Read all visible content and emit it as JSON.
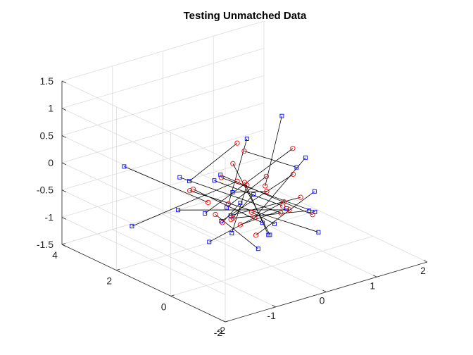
{
  "chart_data": {
    "type": "scatter",
    "title": "Testing Unmatched Data",
    "xlabel": "",
    "ylabel": "",
    "zlabel": "",
    "xlim": [
      -2,
      2
    ],
    "ylim": [
      -2,
      4
    ],
    "zlim": [
      -1.5,
      1.5
    ],
    "x_ticks": [
      "-2",
      "-1",
      "0",
      "1",
      "2"
    ],
    "y_ticks": [
      "-2",
      "0",
      "2",
      "4"
    ],
    "z_ticks": [
      "-1.5",
      "-1",
      "-0.5",
      "0",
      "0.5",
      "1",
      "1.5"
    ],
    "grid": true,
    "colors": {
      "squares": "#0000ff",
      "circles": "#ff0000",
      "links": "#000000"
    },
    "series": [
      {
        "marker": "square",
        "color": "#0000ff",
        "values": []
      },
      {
        "marker": "circle",
        "color": "#ff0000",
        "values": []
      }
    ],
    "points": [
      {
        "id": 1,
        "sx": 0.8,
        "sy": 2.4,
        "sz": 0.05,
        "cx": -0.05,
        "cy": 1.5,
        "cz": -0.7
      },
      {
        "id": 2,
        "sx": -1.2,
        "sy": 3.2,
        "sz": -0.1,
        "cx": -0.4,
        "cy": 1.6,
        "cz": -0.6
      },
      {
        "id": 3,
        "sx": -0.5,
        "sy": 2.1,
        "sz": -0.3,
        "cx": 0.5,
        "cy": 2.2,
        "cz": 0.1
      },
      {
        "id": 4,
        "sx": -1.8,
        "sy": 1.8,
        "sz": -0.7,
        "cx": -0.2,
        "cy": 0.9,
        "cz": -0.1
      },
      {
        "id": 5,
        "sx": 0.4,
        "sy": 0.2,
        "sz": -0.6,
        "cx": -0.3,
        "cy": 0.6,
        "cz": -0.8
      },
      {
        "id": 6,
        "sx": -0.6,
        "sy": 0.4,
        "sz": -0.5,
        "cx": 0.3,
        "cy": -0.5,
        "cz": -0.2
      },
      {
        "id": 7,
        "sx": 0.2,
        "sy": -1.0,
        "sz": -0.3,
        "cx": -0.5,
        "cy": 0.5,
        "cz": -0.6
      },
      {
        "id": 8,
        "sx": -0.9,
        "sy": -0.2,
        "sz": -0.6,
        "cx": 0.1,
        "cy": 1.1,
        "cz": -0.3
      },
      {
        "id": 9,
        "sx": 1.1,
        "sy": 0.8,
        "sz": 0.0,
        "cx": 0.2,
        "cy": 1.0,
        "cz": -0.9
      },
      {
        "id": 10,
        "sx": -0.3,
        "sy": 1.3,
        "sz": -0.9,
        "cx": 0.8,
        "cy": 0.7,
        "cz": -0.2
      },
      {
        "id": 11,
        "sx": 0.6,
        "sy": -0.6,
        "sz": -0.9,
        "cx": -0.6,
        "cy": 1.9,
        "cz": -0.4
      },
      {
        "id": 12,
        "sx": -0.1,
        "sy": 1.7,
        "sz": -0.2,
        "cx": 0.7,
        "cy": -0.2,
        "cz": -0.7
      },
      {
        "id": 13,
        "sx": 0.3,
        "sy": 0.9,
        "sz": -1.0,
        "cx": -0.8,
        "cy": 1.4,
        "cz": -0.2
      },
      {
        "id": 14,
        "sx": -0.7,
        "sy": 1.0,
        "sz": -1.1,
        "cx": 0.4,
        "cy": 0.3,
        "cz": -0.5
      },
      {
        "id": 15,
        "sx": 0.9,
        "sy": 0.1,
        "sz": -0.4,
        "cx": -0.1,
        "cy": 0.4,
        "cz": -1.0
      },
      {
        "id": 16,
        "sx": -0.4,
        "sy": 0.7,
        "sz": -0.2,
        "cx": 0.6,
        "cy": 1.3,
        "cz": -0.6
      },
      {
        "id": 17,
        "sx": 0.1,
        "sy": 2.3,
        "sz": -0.5,
        "cx": 0.0,
        "cy": -0.4,
        "cz": -0.3
      },
      {
        "id": 18,
        "sx": -1.0,
        "sy": 0.6,
        "sz": -0.4,
        "cx": 0.9,
        "cy": 0.9,
        "cz": 0.2
      },
      {
        "id": 19,
        "sx": 0.5,
        "sy": 1.6,
        "sz": -0.7,
        "cx": -0.7,
        "cy": 0.2,
        "cz": -0.5
      },
      {
        "id": 20,
        "sx": -0.2,
        "sy": -0.3,
        "sz": -0.8,
        "cx": 0.2,
        "cy": 1.8,
        "cz": -0.1
      },
      {
        "id": 21,
        "sx": 0.7,
        "sy": 1.2,
        "sz": -1.2,
        "cx": -0.4,
        "cy": 0.0,
        "cz": -0.4
      },
      {
        "id": 22,
        "sx": -0.8,
        "sy": 1.9,
        "sz": -0.1,
        "cx": 0.5,
        "cy": 0.6,
        "cz": -0.8
      },
      {
        "id": 23,
        "sx": 1.3,
        "sy": 1.5,
        "sz": -0.4,
        "cx": 0.1,
        "cy": 1.2,
        "cz": 0.3
      },
      {
        "id": 24,
        "sx": 0.0,
        "sy": 0.5,
        "sz": -1.3,
        "cx": -0.2,
        "cy": 1.7,
        "cz": -0.9
      },
      {
        "id": 25,
        "sx": 1.6,
        "sy": 2.6,
        "sz": 0.2,
        "cx": 0.3,
        "cy": 0.8,
        "cz": -0.3
      },
      {
        "id": 26,
        "sx": -0.5,
        "sy": -0.8,
        "sz": -0.6,
        "cx": 0.0,
        "cy": 1.0,
        "cz": -0.2
      },
      {
        "id": 27,
        "sx": 0.4,
        "sy": 1.9,
        "sz": -0.9,
        "cx": -0.6,
        "cy": 0.7,
        "cz": -0.7
      },
      {
        "id": 28,
        "sx": -0.3,
        "sy": 1.1,
        "sz": -0.6,
        "cx": 0.7,
        "cy": 1.5,
        "cz": -0.4
      },
      {
        "id": 29,
        "sx": 0.8,
        "sy": -0.1,
        "sz": -0.7,
        "cx": -0.3,
        "cy": 1.3,
        "cz": -0.1
      },
      {
        "id": 30,
        "sx": -1.1,
        "sy": 1.4,
        "sz": -0.5,
        "cx": 0.4,
        "cy": 0.1,
        "cz": -0.6
      }
    ]
  }
}
